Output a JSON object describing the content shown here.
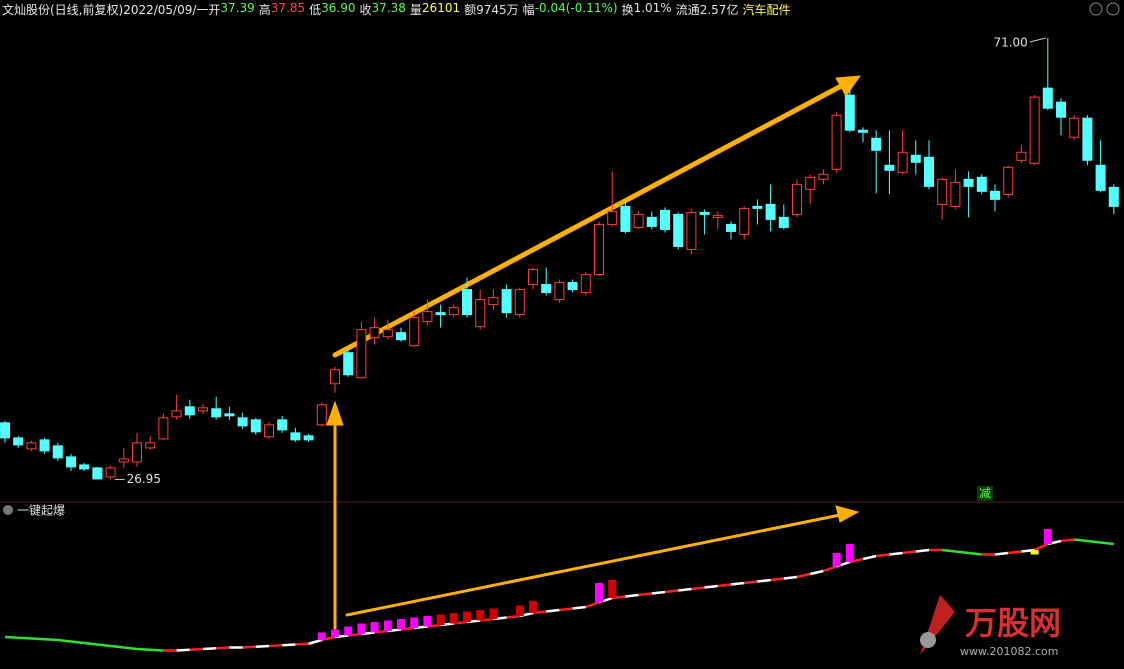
{
  "chart_data": {
    "type": "candlestick",
    "title": "文灿股份(日线,前复权)",
    "date": "2022/05/09/一",
    "info": [
      {
        "label": "开",
        "value": "37.39",
        "color": "#50ff50"
      },
      {
        "label": "高",
        "value": "37.85",
        "color": "#ff4040"
      },
      {
        "label": "低",
        "value": "36.90",
        "color": "#50ff50"
      },
      {
        "label": "收",
        "value": "37.38",
        "color": "#50ff50"
      },
      {
        "label": "量",
        "value": "26101",
        "color": "#ffff40"
      },
      {
        "label": "额",
        "value": "9745万",
        "color": "#e0e0e0"
      },
      {
        "label": "幅",
        "value": "-0.04(-0.11%)",
        "color": "#50ff50"
      },
      {
        "label": "换",
        "value": "1.01%",
        "color": "#e0e0e0"
      },
      {
        "label": "流通",
        "value": "2.57亿",
        "color": "#e0e0e0"
      }
    ],
    "sector": "汽车配件",
    "open": [
      32.6,
      31.1,
      30.0,
      30.9,
      30.3,
      29.2,
      28.4,
      28.1,
      27.2,
      28.7,
      28.7,
      30.1,
      31.0,
      33.2,
      34.2,
      33.8,
      34.0,
      33.5,
      33.1,
      32.9,
      31.2,
      32.9,
      31.6,
      31.3,
      32.4,
      36.5,
      39.6,
      37.1,
      41.1,
      41.2,
      41.6,
      40.3,
      42.7,
      43.6,
      43.4,
      45.9,
      42.2,
      44.4,
      45.9,
      43.4,
      46.4,
      46.4,
      44.9,
      46.6,
      45.6,
      47.4,
      52.4,
      54.2,
      52.1,
      53.1,
      53.8,
      53.4,
      49.9,
      53.6,
      53.1,
      52.4,
      51.4,
      54.2,
      54.4,
      53.1,
      53.4,
      55.9,
      56.9,
      57.9,
      65.3,
      61.8,
      61.0,
      58.3,
      57.6,
      59.3,
      59.1,
      54.4,
      54.2,
      56.9,
      57.1,
      55.7,
      55.4,
      58.8,
      58.5,
      66.0,
      64.6,
      61.1,
      63.0,
      58.3,
      56.1
    ],
    "high": [
      32.8,
      31.3,
      30.8,
      31.1,
      30.6,
      29.5,
      28.6,
      28.2,
      28.3,
      30.1,
      31.6,
      31.3,
      33.5,
      35.4,
      34.9,
      34.5,
      35.2,
      34.2,
      33.6,
      33.1,
      32.7,
      33.3,
      32.1,
      31.5,
      34.6,
      38.2,
      39.9,
      42.7,
      43.1,
      42.9,
      42.1,
      43.7,
      44.9,
      44.4,
      44.4,
      47.1,
      45.9,
      45.9,
      46.4,
      46.1,
      48.1,
      48.1,
      46.9,
      46.9,
      47.6,
      52.7,
      57.7,
      54.9,
      53.7,
      53.7,
      54.1,
      53.6,
      53.9,
      53.9,
      53.7,
      52.7,
      54.2,
      54.9,
      56.4,
      54.4,
      56.9,
      57.4,
      57.9,
      63.6,
      66.3,
      62.1,
      61.8,
      61.8,
      61.8,
      60.8,
      60.8,
      57.1,
      57.9,
      57.7,
      57.4,
      56.4,
      58.3,
      60.3,
      65.3,
      71.0,
      65.0,
      63.3,
      63.3,
      60.8,
      56.4
    ],
    "low": [
      30.6,
      30.1,
      29.8,
      29.5,
      28.8,
      27.8,
      27.8,
      27.0,
      26.95,
      28.1,
      28.2,
      29.9,
      30.9,
      32.9,
      33.0,
      33.5,
      32.9,
      32.9,
      32.0,
      31.4,
      31.0,
      31.6,
      30.7,
      30.7,
      32.2,
      35.6,
      37.2,
      37.1,
      40.4,
      40.9,
      40.7,
      40.2,
      42.4,
      42.1,
      43.1,
      43.1,
      41.9,
      43.9,
      43.1,
      43.1,
      45.9,
      45.3,
      44.6,
      45.6,
      45.3,
      47.2,
      52.2,
      51.5,
      51.9,
      51.9,
      51.6,
      49.9,
      49.4,
      51.4,
      51.9,
      50.9,
      50.9,
      52.4,
      51.7,
      51.9,
      53.1,
      54.4,
      56.4,
      57.6,
      61.6,
      60.6,
      55.5,
      55.4,
      57.4,
      57.4,
      55.9,
      52.9,
      53.9,
      53.1,
      55.4,
      53.7,
      55.1,
      58.5,
      58.3,
      63.8,
      61.3,
      60.8,
      58.3,
      55.6,
      53.4
    ],
    "close": [
      31.1,
      30.4,
      30.6,
      29.8,
      29.1,
      28.2,
      28.0,
      27.0,
      28.1,
      29.0,
      30.6,
      30.6,
      33.1,
      33.8,
      33.4,
      34.1,
      33.2,
      33.3,
      32.3,
      31.7,
      32.4,
      31.9,
      30.9,
      30.9,
      34.4,
      37.9,
      37.4,
      41.9,
      42.1,
      41.9,
      40.9,
      43.1,
      43.7,
      43.4,
      44.1,
      43.4,
      44.9,
      45.1,
      43.6,
      45.9,
      47.9,
      45.6,
      46.6,
      45.9,
      47.4,
      52.4,
      53.7,
      51.7,
      53.4,
      52.2,
      51.9,
      50.2,
      53.6,
      53.4,
      53.3,
      51.7,
      54.0,
      54.0,
      52.9,
      52.1,
      56.4,
      57.1,
      57.4,
      63.3,
      61.8,
      61.6,
      59.8,
      57.8,
      59.6,
      58.6,
      56.2,
      56.9,
      56.6,
      56.2,
      55.7,
      54.9,
      58.1,
      59.6,
      65.1,
      64.0,
      63.1,
      63.0,
      58.8,
      55.8,
      54.2
    ],
    "ylim": [
      24.9,
      73.0
    ],
    "up_color": "#ff3c3c",
    "down_color": "#54ffff",
    "high_label": "71.00",
    "low_label": "26.95",
    "indicator": {
      "type": "line",
      "title": "一键起爆",
      "signal": "减",
      "ylim": [
        0,
        100
      ],
      "values": [
        12,
        11.5,
        11,
        10.5,
        10,
        9,
        8,
        7,
        6,
        5,
        4,
        3.5,
        3,
        3,
        3.5,
        4,
        4.5,
        5,
        5,
        5.5,
        6,
        6.5,
        7,
        7.5,
        10,
        12,
        13,
        14,
        15,
        16,
        17,
        18,
        19,
        20,
        21,
        22,
        23,
        24,
        25,
        26,
        28,
        29,
        30,
        31,
        32,
        35,
        38,
        39,
        40,
        41,
        42,
        43,
        44,
        45,
        46,
        47,
        48,
        49,
        50,
        51,
        52,
        54,
        56,
        59,
        62,
        64,
        66,
        67,
        68,
        69,
        70,
        70,
        69,
        68,
        67,
        67,
        68,
        69,
        70,
        74,
        76,
        77,
        76,
        75,
        74
      ],
      "bars": [
        null,
        null,
        null,
        null,
        null,
        null,
        null,
        null,
        null,
        null,
        null,
        null,
        null,
        null,
        null,
        null,
        null,
        null,
        null,
        null,
        null,
        null,
        null,
        null,
        15,
        17,
        19,
        21,
        22,
        23,
        24,
        25,
        26,
        27,
        28,
        29,
        30,
        31,
        null,
        33,
        36,
        null,
        null,
        null,
        null,
        48,
        50,
        null,
        null,
        null,
        null,
        null,
        null,
        null,
        null,
        null,
        null,
        null,
        null,
        null,
        null,
        null,
        null,
        68,
        74,
        null,
        null,
        null,
        null,
        null,
        null,
        null,
        null,
        null,
        null,
        null,
        null,
        null,
        67,
        84,
        null,
        null,
        null,
        null,
        null
      ],
      "bar_colors": [
        null,
        null,
        null,
        null,
        null,
        null,
        null,
        null,
        null,
        null,
        null,
        null,
        null,
        null,
        null,
        null,
        null,
        null,
        null,
        null,
        null,
        null,
        null,
        null,
        "#ff00ff",
        "#ff00ff",
        "#ff00ff",
        "#ff00ff",
        "#ff00ff",
        "#ff00ff",
        "#ff00ff",
        "#ff00ff",
        "#ff00ff",
        "#d00000",
        "#d00000",
        "#d00000",
        "#d00000",
        "#d00000",
        null,
        "#d00000",
        "#d00000",
        null,
        null,
        null,
        null,
        "#ff00ff",
        "#d00000",
        null,
        null,
        null,
        null,
        null,
        null,
        null,
        null,
        null,
        null,
        null,
        null,
        null,
        null,
        null,
        null,
        "#ff00ff",
        "#ff00ff",
        null,
        null,
        null,
        null,
        null,
        null,
        null,
        null,
        null,
        null,
        null,
        null,
        null,
        "#ffff00",
        "#ff00ff",
        null,
        null,
        null,
        null,
        null
      ],
      "rise_color": "#ff2020",
      "fall_color": "#30e030",
      "dash_color": "#ffffff"
    }
  },
  "watermark": {
    "name": "万股网",
    "url": "www.201082.com"
  }
}
